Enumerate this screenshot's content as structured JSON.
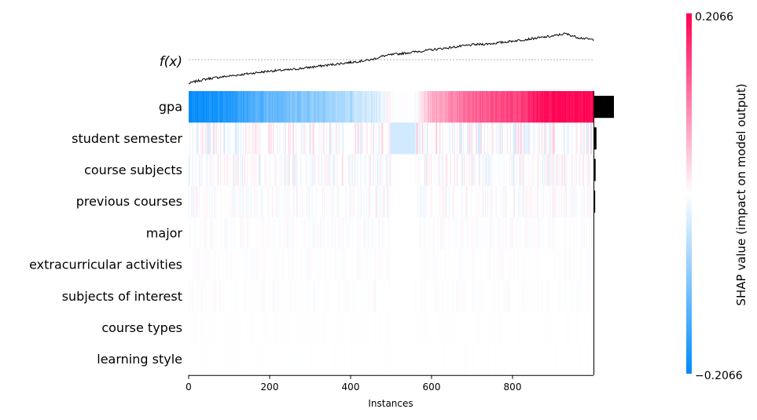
{
  "chart_data": {
    "type": "heatmap",
    "title": "",
    "fx_label": "f(x)",
    "xlabel": "Instances",
    "x_ticks": [
      0,
      200,
      400,
      600,
      800
    ],
    "xlim": [
      0,
      1000
    ],
    "features": [
      "gpa",
      "student semester",
      "course subjects",
      "previous courses",
      "major",
      "extracurricular activities",
      "subjects of interest",
      "course types",
      "learning style"
    ],
    "feature_importance": [
      0.048,
      0.007,
      0.005,
      0.004,
      0.0015,
      0.001,
      0.0008,
      0.0003,
      0.0002
    ],
    "colorbar": {
      "label": "SHAP value (impact on model output)",
      "max_label": "0.2066",
      "min_label": "−0.2066",
      "vmin": -0.2066,
      "vmax": 0.2066,
      "colors": {
        "negative": "#008bfb",
        "neutral": "#ffffff",
        "positive": "#ff0052"
      }
    },
    "fx_curve_points": [
      [
        0,
        -0.21
      ],
      [
        20,
        -0.19
      ],
      [
        50,
        -0.17
      ],
      [
        100,
        -0.15
      ],
      [
        150,
        -0.13
      ],
      [
        200,
        -0.11
      ],
      [
        250,
        -0.1
      ],
      [
        300,
        -0.08
      ],
      [
        350,
        -0.06
      ],
      [
        400,
        -0.04
      ],
      [
        450,
        -0.02
      ],
      [
        480,
        0.01
      ],
      [
        500,
        0.02
      ],
      [
        550,
        0.04
      ],
      [
        600,
        0.06
      ],
      [
        650,
        0.08
      ],
      [
        700,
        0.1
      ],
      [
        750,
        0.11
      ],
      [
        800,
        0.13
      ],
      [
        850,
        0.15
      ],
      [
        900,
        0.17
      ],
      [
        930,
        0.19
      ],
      [
        960,
        0.16
      ],
      [
        1000,
        0.14
      ]
    ],
    "fx_range": [
      -0.22,
      0.22
    ],
    "gpa_profile_points": [
      [
        0,
        -1.0
      ],
      [
        100,
        -0.85
      ],
      [
        200,
        -0.6
      ],
      [
        300,
        -0.45
      ],
      [
        400,
        -0.3
      ],
      [
        470,
        -0.12
      ],
      [
        490,
        0.05
      ],
      [
        500,
        0.0
      ],
      [
        560,
        0.0
      ],
      [
        600,
        0.3
      ],
      [
        700,
        0.6
      ],
      [
        800,
        0.75
      ],
      [
        900,
        0.95
      ],
      [
        1000,
        1.0
      ]
    ],
    "secondary_feature_strength": [
      0.22,
      0.15,
      0.09,
      0.05,
      0.035,
      0.03,
      0.01,
      0.005
    ]
  }
}
